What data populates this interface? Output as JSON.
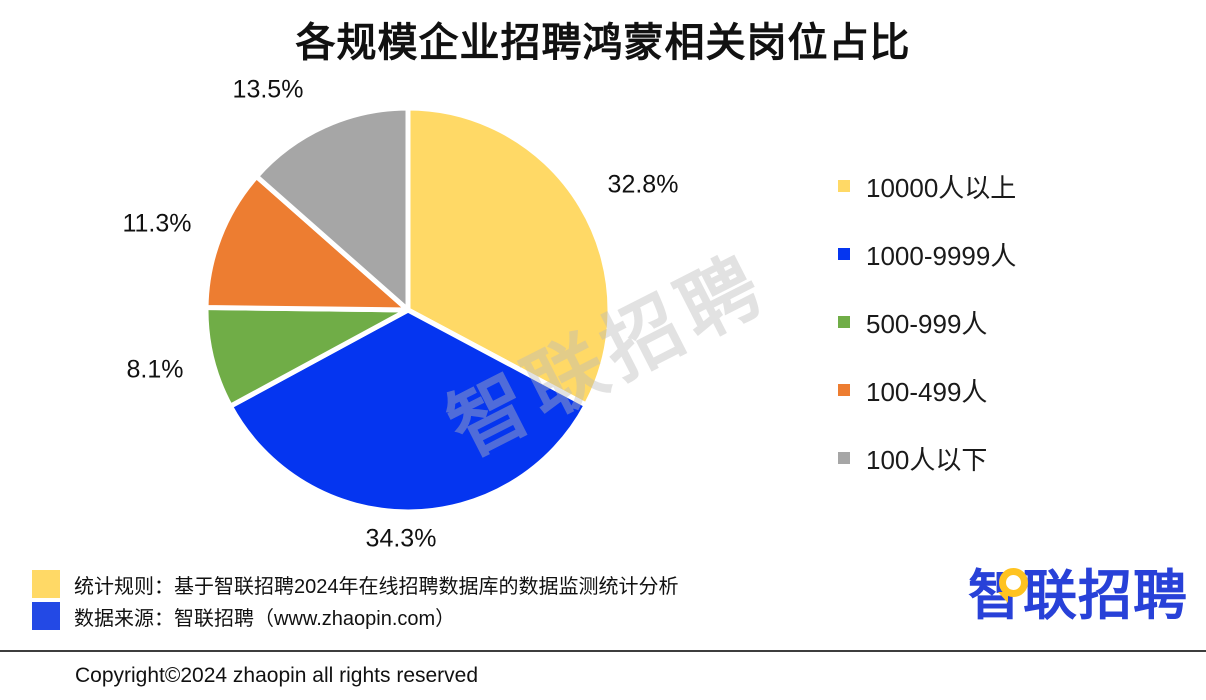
{
  "title": "各规模企业招聘鸿蒙相关岗位占比",
  "chart_data": {
    "type": "pie",
    "title": "各规模企业招聘鸿蒙相关岗位占比",
    "direction": "clockwise",
    "start_angle_deg": 0,
    "legend_position": "right",
    "slices": [
      {
        "label": "10000人以上",
        "value": 32.8,
        "pct_label": "32.8%",
        "color": "#FFD966"
      },
      {
        "label": "1000-9999人",
        "value": 34.3,
        "pct_label": "34.3%",
        "color": "#0535F0"
      },
      {
        "label": "500-999人",
        "value": 8.1,
        "pct_label": "8.1%",
        "color": "#70AD47"
      },
      {
        "label": "100-499人",
        "value": 11.3,
        "pct_label": "11.3%",
        "color": "#ED7D31"
      },
      {
        "label": "100人以下",
        "value": 13.5,
        "pct_label": "13.5%",
        "color": "#A6A6A6"
      }
    ]
  },
  "watermark": "智联招聘",
  "notes": [
    {
      "color": "#FFD966",
      "text": "统计规则：基于智联招聘2024年在线招聘数据库的数据监测统计分析"
    },
    {
      "color": "#2349E5",
      "text": "数据来源：智联招聘（www.zhaopin.com）"
    }
  ],
  "logo": {
    "text": "智联招聘",
    "blue": "#2841D8",
    "yellow": "#FFC321"
  },
  "footer": {
    "copyright": "Copyright©2024 zhaopin all rights reserved"
  }
}
